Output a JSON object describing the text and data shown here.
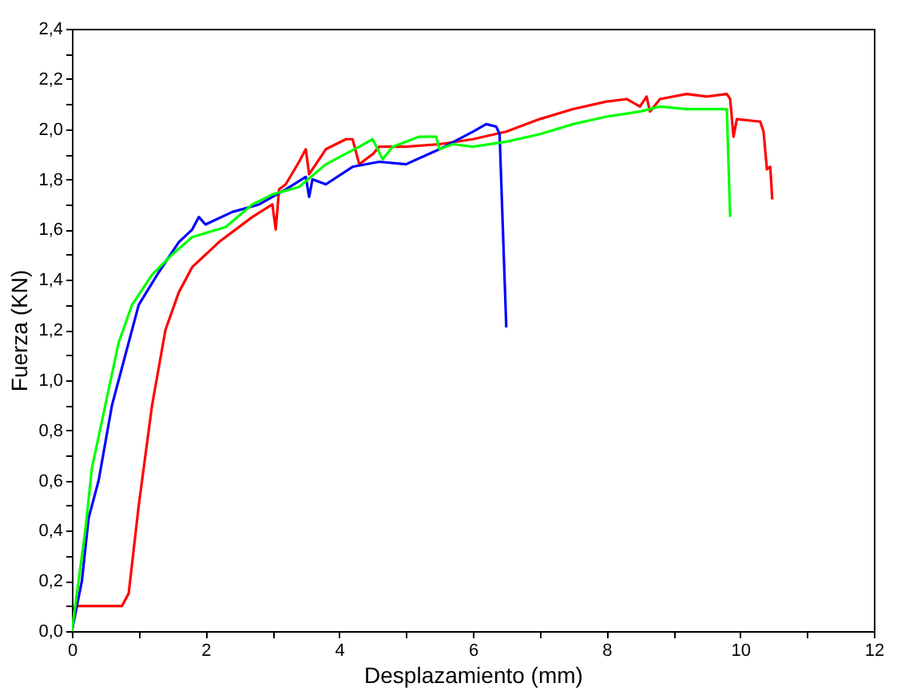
{
  "chart_data": {
    "type": "line",
    "xlabel": "Desplazamiento (mm)",
    "ylabel": "Fuerza (KN)",
    "xlim": [
      0,
      12
    ],
    "ylim": [
      0,
      2.4
    ],
    "xticks": [
      0,
      {
        "value": 1,
        "label": null
      },
      2,
      {
        "value": 3,
        "label": null
      },
      4,
      {
        "value": 5,
        "label": null
      },
      6,
      {
        "value": 7,
        "label": null
      },
      8,
      {
        "value": 9,
        "label": null
      },
      10,
      {
        "value": 11,
        "label": null
      },
      12
    ],
    "yticks": [
      {
        "value": 0,
        "label": "0,0"
      },
      {
        "value": 0.1,
        "label": null
      },
      {
        "value": 0.2,
        "label": "0,2"
      },
      {
        "value": 0.3,
        "label": null
      },
      {
        "value": 0.4,
        "label": "0,4"
      },
      {
        "value": 0.5,
        "label": null
      },
      {
        "value": 0.6,
        "label": "0,6"
      },
      {
        "value": 0.7,
        "label": null
      },
      {
        "value": 0.8,
        "label": "0,8"
      },
      {
        "value": 0.9,
        "label": null
      },
      {
        "value": 1.0,
        "label": "1,0"
      },
      {
        "value": 1.1,
        "label": null
      },
      {
        "value": 1.2,
        "label": "1,2"
      },
      {
        "value": 1.3,
        "label": null
      },
      {
        "value": 1.4,
        "label": "1,4"
      },
      {
        "value": 1.5,
        "label": null
      },
      {
        "value": 1.6,
        "label": "1,6"
      },
      {
        "value": 1.7,
        "label": null
      },
      {
        "value": 1.8,
        "label": "1,8"
      },
      {
        "value": 1.9,
        "label": null
      },
      {
        "value": 2.0,
        "label": "2,0"
      },
      {
        "value": 2.1,
        "label": null
      },
      {
        "value": 2.2,
        "label": "2,2"
      },
      {
        "value": 2.3,
        "label": null
      },
      {
        "value": 2.4,
        "label": "2,4"
      }
    ],
    "grid": false,
    "legend": false,
    "marker": "none",
    "line_style": "solid",
    "series": [
      {
        "color": "#ff0000",
        "x": [
          0,
          0.05,
          0.75,
          0.85,
          1.0,
          1.2,
          1.4,
          1.6,
          1.8,
          2.2,
          2.7,
          3.0,
          3.05,
          3.1,
          3.2,
          3.4,
          3.5,
          3.55,
          3.8,
          4.1,
          4.2,
          4.3,
          4.5,
          4.6,
          5.0,
          5.5,
          6.0,
          6.5,
          7.0,
          7.5,
          8.0,
          8.3,
          8.5,
          8.6,
          8.65,
          8.8,
          9.2,
          9.5,
          9.8,
          9.85,
          9.9,
          9.95,
          10.3,
          10.35,
          10.4,
          10.45,
          10.48
        ],
        "values": [
          0,
          0.1,
          0.1,
          0.15,
          0.5,
          0.9,
          1.2,
          1.35,
          1.45,
          1.55,
          1.65,
          1.7,
          1.6,
          1.76,
          1.78,
          1.87,
          1.92,
          1.82,
          1.92,
          1.96,
          1.96,
          1.86,
          1.9,
          1.93,
          1.93,
          1.94,
          1.96,
          1.99,
          2.04,
          2.08,
          2.11,
          2.12,
          2.09,
          2.13,
          2.07,
          2.12,
          2.14,
          2.13,
          2.14,
          2.12,
          1.97,
          2.04,
          2.03,
          1.99,
          1.84,
          1.85,
          1.72
        ]
      },
      {
        "color": "#0000ff",
        "x": [
          0,
          0.15,
          0.25,
          0.4,
          0.6,
          0.8,
          1.0,
          1.3,
          1.6,
          1.8,
          1.9,
          2.0,
          2.4,
          2.8,
          3.2,
          3.5,
          3.55,
          3.6,
          3.8,
          4.2,
          4.6,
          5.0,
          5.5,
          6.0,
          6.2,
          6.35,
          6.4,
          6.5
        ],
        "values": [
          0,
          0.2,
          0.45,
          0.6,
          0.9,
          1.1,
          1.3,
          1.43,
          1.55,
          1.6,
          1.65,
          1.62,
          1.67,
          1.7,
          1.76,
          1.81,
          1.73,
          1.8,
          1.78,
          1.85,
          1.87,
          1.86,
          1.92,
          1.99,
          2.02,
          2.01,
          1.98,
          1.21
        ]
      },
      {
        "color": "#00ff00",
        "x": [
          0,
          0.1,
          0.2,
          0.3,
          0.5,
          0.7,
          0.9,
          1.2,
          1.5,
          1.8,
          2.3,
          2.7,
          3.0,
          3.4,
          3.8,
          4.3,
          4.5,
          4.65,
          4.8,
          5.2,
          5.45,
          5.5,
          5.7,
          6.0,
          6.5,
          7.0,
          7.5,
          8.0,
          8.5,
          8.8,
          9.2,
          9.8,
          9.85
        ],
        "values": [
          0,
          0.2,
          0.4,
          0.65,
          0.9,
          1.15,
          1.3,
          1.42,
          1.5,
          1.57,
          1.61,
          1.7,
          1.74,
          1.77,
          1.86,
          1.93,
          1.96,
          1.88,
          1.93,
          1.97,
          1.97,
          1.92,
          1.94,
          1.93,
          1.95,
          1.98,
          2.02,
          2.05,
          2.07,
          2.09,
          2.08,
          2.08,
          1.65
        ]
      }
    ]
  }
}
